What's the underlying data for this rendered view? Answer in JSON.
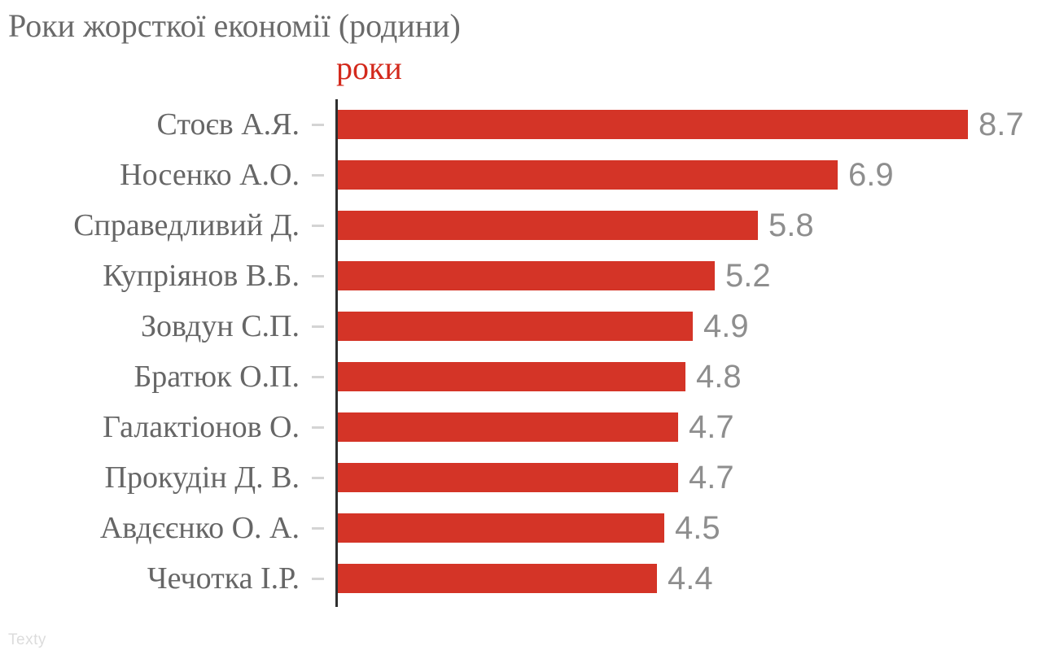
{
  "title": "Роки жорсткої економії (родини)",
  "watermark": "Texty",
  "chart_data": {
    "type": "bar",
    "orientation": "horizontal",
    "title": "Роки жорсткої економії (родини)",
    "series_label": "роки",
    "categories": [
      "Стоєв А.Я.",
      "Носенко А.О.",
      "Справедливий Д.",
      "Купріянов В.Б.",
      "Зовдун С.П.",
      "Братюк О.П.",
      "Галактіонов О.",
      "Прокудін Д. В.",
      "Авдєєнко О. А.",
      "Чечотка І.Р."
    ],
    "values": [
      8.7,
      6.9,
      5.8,
      5.2,
      4.9,
      4.8,
      4.7,
      4.7,
      4.5,
      4.4
    ],
    "display_values": [
      "8.7",
      "6.9",
      "5.8",
      "5.2",
      "4.9",
      "4.8",
      "4.7",
      "4.7",
      "4.5",
      "4.4"
    ],
    "xlim": [
      0,
      8.7
    ],
    "grid": false,
    "legend_position": "top",
    "colors": {
      "bar": "#d43427",
      "series_label": "#d3291c",
      "title": "#6a6a6a",
      "category_label": "#666666",
      "value_label": "#8e8e8e",
      "tick": "#d4d4d4",
      "axis": "#2f2f2f",
      "watermark": "#dcdcdc",
      "background": "#ffffff"
    }
  }
}
